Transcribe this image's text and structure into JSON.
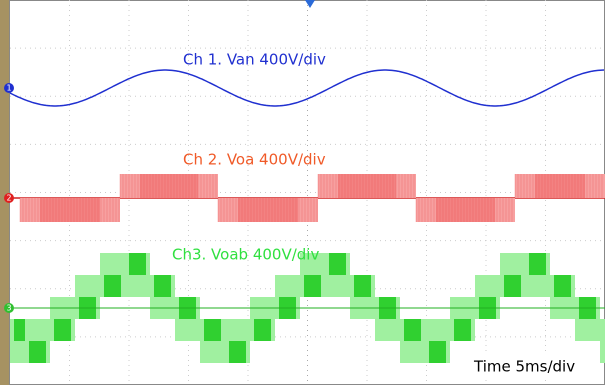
{
  "channels": [
    {
      "marker": "1",
      "label": "Ch 1. Van 400V/div"
    },
    {
      "marker": "2",
      "label": "Ch 2. Voa 400V/div"
    },
    {
      "marker": "3",
      "label": "Ch3. Voab 400V/div"
    }
  ],
  "timebase": "Time 5ms/div"
}
